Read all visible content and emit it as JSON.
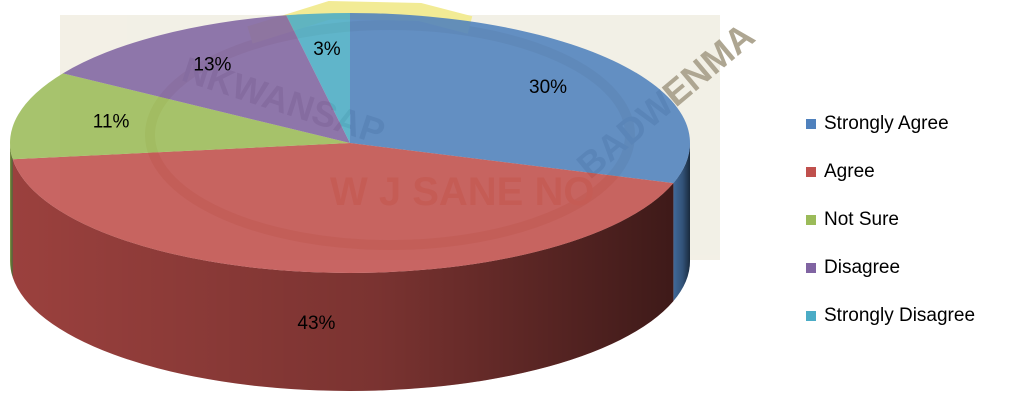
{
  "chart_data": {
    "type": "pie",
    "title": "",
    "categories": [
      "Strongly Agree",
      "Agree",
      "Not Sure",
      "Disagree",
      "Strongly Disagree"
    ],
    "values": [
      30,
      43,
      11,
      13,
      3
    ],
    "data_labels": [
      "30%",
      "43%",
      "11%",
      "13%",
      "3%"
    ],
    "colors": [
      "#4F81BD",
      "#C0504D",
      "#9BBB59",
      "#8064A2",
      "#4BACC6"
    ],
    "three_d": true,
    "legend_position": "right"
  },
  "watermark": {
    "text_left": "NKWANSAP",
    "text_center": "W J SANE NO",
    "text_right": "BADWENMA"
  }
}
